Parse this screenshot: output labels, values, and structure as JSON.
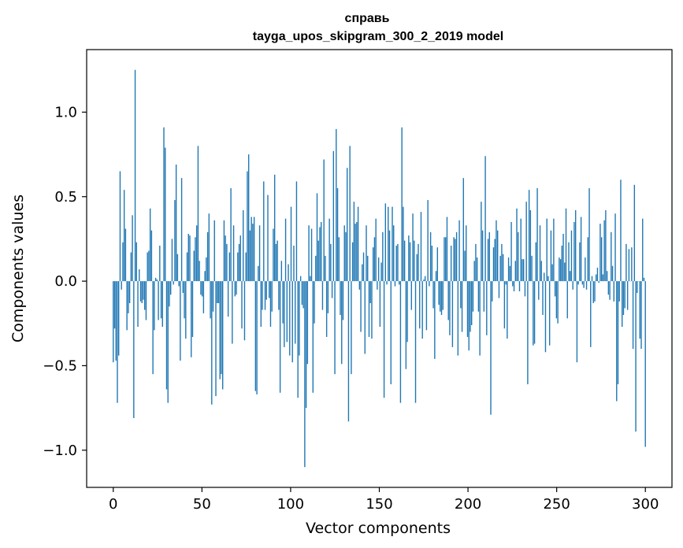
{
  "chart_data": {
    "type": "bar",
    "title": "справь",
    "subtitle": "tayga_upos_skipgram_300_2_2019 model",
    "xlabel": "Vector components",
    "ylabel": "Components values",
    "xlim": [
      -15,
      315
    ],
    "ylim": [
      -1.22,
      1.37
    ],
    "x_ticks": [
      0,
      50,
      100,
      150,
      200,
      250,
      300
    ],
    "x_tick_labels": [
      "0",
      "50",
      "100",
      "150",
      "200",
      "250",
      "300"
    ],
    "y_ticks": [
      -1.0,
      -0.5,
      0.0,
      0.5,
      1.0
    ],
    "y_tick_labels": [
      "−1.0",
      "−0.5",
      "0.0",
      "0.5",
      "1.0"
    ],
    "bar_color": "#1f77b4",
    "values": [
      -0.48,
      -0.28,
      -0.47,
      -0.72,
      -0.44,
      0.65,
      -0.05,
      0.23,
      0.54,
      0.31,
      -0.29,
      -0.19,
      -0.13,
      0.17,
      0.39,
      -0.81,
      1.25,
      0.23,
      -0.27,
      0.07,
      -0.12,
      -0.13,
      -0.11,
      -0.17,
      -0.23,
      0.17,
      0.18,
      0.43,
      0.3,
      -0.55,
      -0.29,
      0.02,
      0.01,
      -0.23,
      0.21,
      -0.22,
      -0.27,
      0.91,
      0.79,
      -0.64,
      -0.72,
      -0.15,
      -0.08,
      0.25,
      -0.02,
      0.48,
      0.69,
      0.16,
      -0.03,
      -0.47,
      0.61,
      -0.07,
      -0.22,
      -0.34,
      0.17,
      0.28,
      0.27,
      -0.45,
      -0.33,
      0.18,
      0.26,
      0.33,
      0.8,
      0.12,
      -0.08,
      -0.09,
      -0.19,
      0.06,
      0.14,
      0.29,
      0.4,
      -0.22,
      -0.73,
      -0.18,
      0.36,
      -0.68,
      -0.13,
      -0.13,
      -0.58,
      -0.55,
      -0.64,
      0.36,
      0.27,
      0.22,
      -0.21,
      0.17,
      0.55,
      -0.37,
      0.33,
      -0.09,
      -0.08,
      0.17,
      0.22,
      0.27,
      -0.28,
      0.42,
      -0.35,
      0.17,
      0.65,
      0.75,
      0.3,
      0.38,
      0.34,
      0.38,
      -0.65,
      -0.67,
      0.09,
      0.33,
      -0.27,
      -0.17,
      0.59,
      -0.17,
      -0.11,
      0.51,
      -0.1,
      -0.27,
      -0.18,
      0.31,
      0.63,
      0.22,
      0.24,
      -0.17,
      -0.66,
      0.12,
      -0.25,
      -0.39,
      0.37,
      -0.36,
      0.1,
      -0.44,
      0.44,
      -0.48,
      0.21,
      -0.37,
      0.59,
      -0.69,
      -0.44,
      0.03,
      -0.14,
      -0.16,
      -1.1,
      -0.75,
      -0.49,
      0.33,
      0.03,
      0.31,
      -0.66,
      -0.25,
      0.15,
      0.52,
      0.24,
      0.32,
      0.35,
      -0.17,
      0.72,
      0.15,
      -0.33,
      -0.19,
      0.37,
      0.22,
      -0.1,
      0.77,
      -0.55,
      0.9,
      0.55,
      0.26,
      -0.2,
      -0.49,
      -0.23,
      0.33,
      0.29,
      0.67,
      -0.83,
      0.8,
      -0.55,
      0.23,
      0.47,
      0.34,
      0.35,
      0.44,
      -0.05,
      -0.3,
      0.1,
      0.17,
      -0.43,
      0.33,
      0.15,
      -0.33,
      -0.13,
      -0.34,
      0.2,
      0.26,
      0.37,
      -0.05,
      0.14,
      -0.27,
      0.11,
      0.29,
      -0.69,
      0.46,
      -0.02,
      0.44,
      0.3,
      -0.61,
      0.44,
      0.33,
      -0.03,
      0.21,
      0.22,
      -0.02,
      -0.72,
      0.91,
      0.44,
      0.24,
      -0.52,
      -0.36,
      0.27,
      0.23,
      -0.17,
      0.4,
      0.24,
      -0.72,
      0.16,
      0.22,
      -0.28,
      0.41,
      -0.34,
      0.01,
      0.03,
      -0.29,
      0.48,
      -0.03,
      0.29,
      0.21,
      -0.16,
      -0.46,
      0.06,
      0.2,
      -0.14,
      -0.18,
      -0.2,
      -0.17,
      0.26,
      0.26,
      0.38,
      -0.23,
      -0.32,
      0.21,
      -0.39,
      0.26,
      0.25,
      0.29,
      -0.44,
      0.36,
      -0.16,
      -0.3,
      0.61,
      0.18,
      0.33,
      -0.33,
      -0.41,
      -0.3,
      -0.26,
      -0.18,
      0.12,
      0.22,
      0.14,
      -0.18,
      -0.44,
      0.47,
      0.3,
      -0.18,
      0.74,
      -0.32,
      0.25,
      0.29,
      -0.79,
      -0.12,
      0.2,
      0.25,
      0.36,
      0.3,
      -0.1,
      0.15,
      0.22,
      0.16,
      -0.28,
      -0.02,
      -0.34,
      0.14,
      0.09,
      0.35,
      -0.03,
      -0.06,
      0.12,
      0.43,
      0.29,
      -0.06,
      0.37,
      0.13,
      0.13,
      -0.09,
      0.47,
      -0.61,
      0.54,
      0.42,
      0.15,
      -0.38,
      -0.37,
      0.23,
      0.55,
      -0.11,
      0.33,
      0.12,
      -0.2,
      0.05,
      -0.42,
      0.37,
      0.03,
      -0.38,
      0.3,
      0.1,
      0.37,
      -0.09,
      -0.22,
      -0.25,
      0.14,
      0.13,
      0.21,
      0.28,
      0.11,
      0.43,
      -0.22,
      0.23,
      0.06,
      0.3,
      -0.05,
      0.35,
      0.42,
      -0.48,
      -0.02,
      0.23,
      0.38,
      -0.02,
      -0.04,
      0.14,
      -0.05,
      0.26,
      0.55,
      -0.39,
      0.03,
      -0.13,
      -0.12,
      0.04,
      0.08,
      -0.01,
      0.34,
      0.26,
      0.04,
      0.36,
      0.42,
      0.06,
      -0.08,
      -0.11,
      0.29,
      0.09,
      -0.12,
      0.4,
      -0.71,
      -0.61,
      -0.12,
      0.6,
      -0.27,
      -0.2,
      -0.16,
      0.22,
      -0.17,
      0.19,
      0.0,
      0.2,
      -0.4,
      0.57,
      -0.89,
      -0.07,
      0.0,
      -0.34,
      -0.4,
      0.37,
      0.02,
      -0.98
    ]
  }
}
